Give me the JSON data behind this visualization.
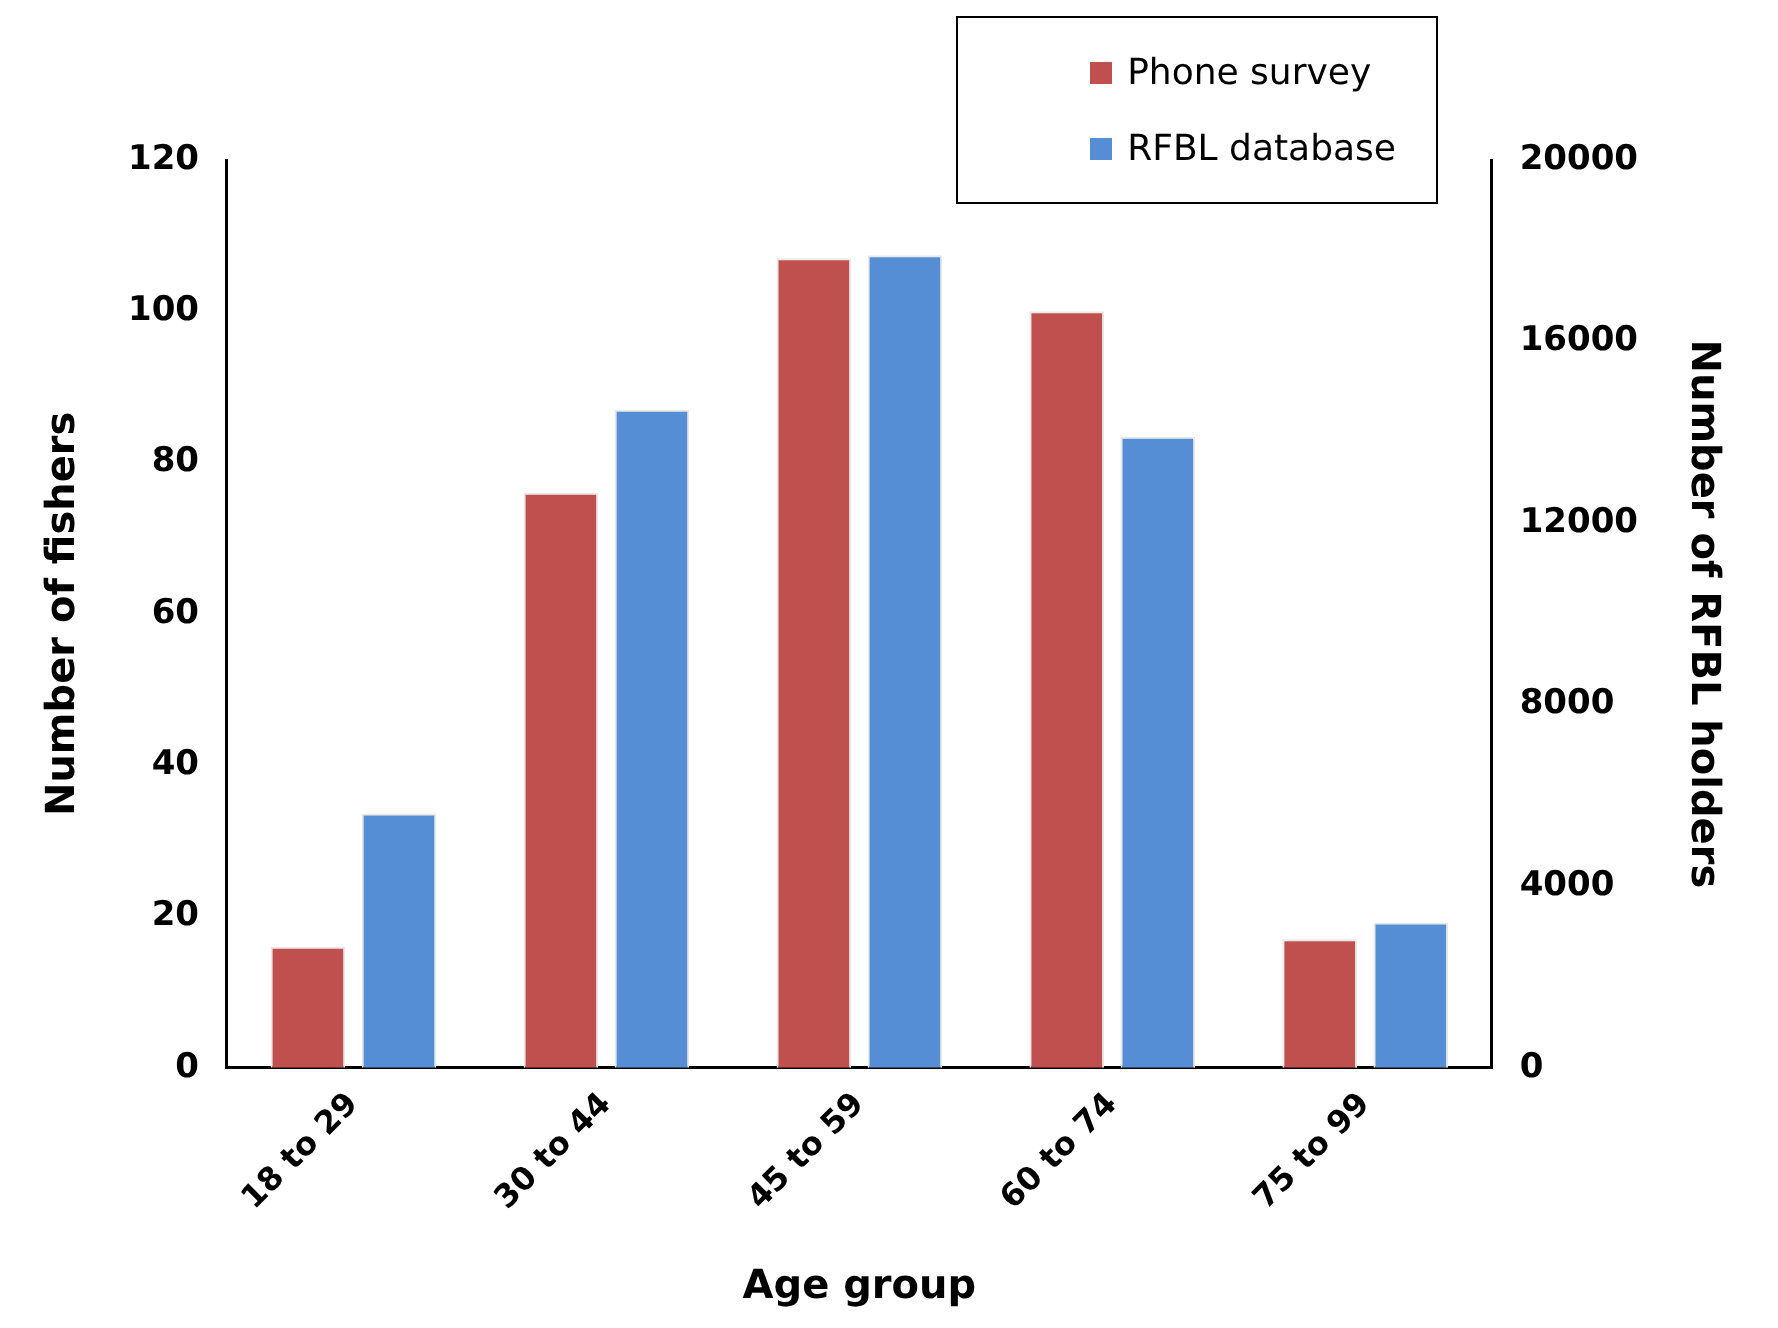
{
  "chart_data": {
    "type": "bar",
    "xlabel": "Age group",
    "ylabel": "Number of fishers",
    "y2label": "Number of RFBL holders",
    "categories": [
      "18 to 29",
      "30 to 44",
      "45 to 59",
      "60 to 74",
      "75 to 99"
    ],
    "series": [
      {
        "name": "Phone survey",
        "color": "#c0504d",
        "values": [
          16,
          76,
          107,
          100,
          17
        ]
      },
      {
        "name": "RFBL database",
        "color": "#558ed5",
        "axis": "y2",
        "values": [
          5600,
          14500,
          17900,
          13900,
          3200
        ]
      }
    ],
    "ylim": [
      0,
      120
    ],
    "yticks": [
      0,
      20,
      40,
      60,
      80,
      100,
      120
    ],
    "y2lim": [
      0,
      20000
    ],
    "y2ticks": [
      0,
      4000,
      8000,
      12000,
      16000,
      20000
    ],
    "legend": "top right"
  }
}
